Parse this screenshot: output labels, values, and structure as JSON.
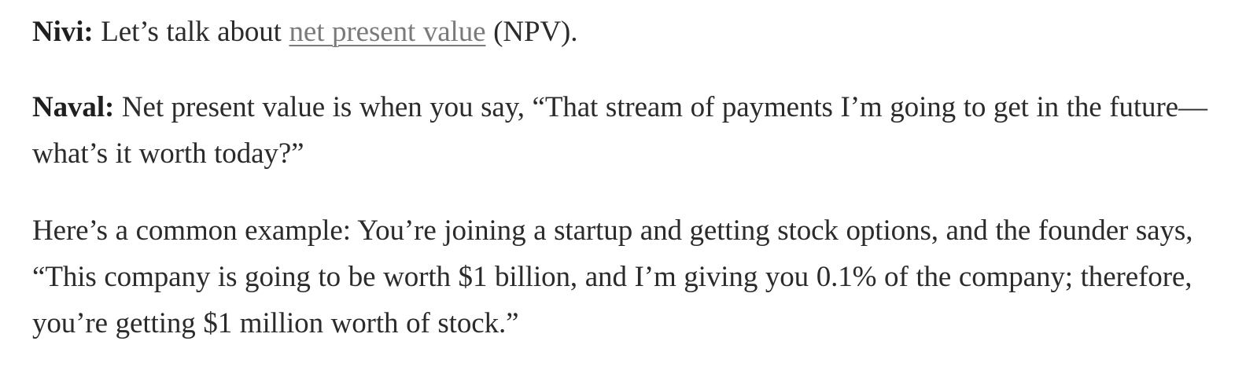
{
  "paragraphs": {
    "p1": {
      "speaker": "Nivi:",
      "text_before": " Let’s talk about ",
      "link_text": "net present value",
      "text_after": " (NPV)."
    },
    "p2": {
      "speaker": "Naval:",
      "text": " Net present value is when you say, “That stream of payments I’m going to get in the future—what’s it worth today?”"
    },
    "p3": {
      "text": "Here’s a common example: You’re joining a startup and getting stock options, and the founder says, “This company is going to be worth $1 billion, and I’m giving you 0.1% of the company; therefore, you’re getting $1 million worth of stock.”"
    }
  }
}
